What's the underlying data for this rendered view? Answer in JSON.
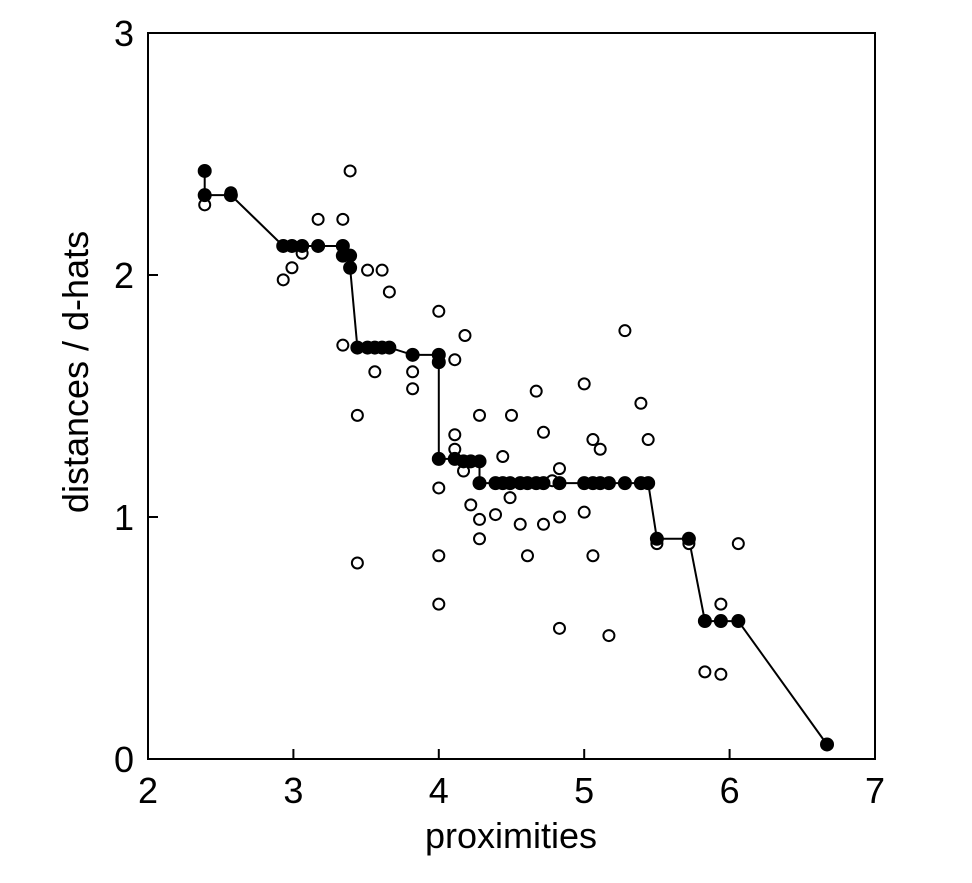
{
  "chart_data": {
    "type": "scatter",
    "title": "",
    "xlabel": "proximities",
    "ylabel": "distances / d-hats",
    "xlim": [
      2,
      7
    ],
    "ylim": [
      0,
      3
    ],
    "x_ticks": [
      2,
      3,
      4,
      5,
      6,
      7
    ],
    "y_ticks": [
      0,
      1,
      2,
      3
    ],
    "grid": false,
    "series": [
      {
        "style": "open-circle",
        "points": [
          [
            2.39,
            2.29
          ],
          [
            2.57,
            2.34
          ],
          [
            2.93,
            1.98
          ],
          [
            2.99,
            2.03
          ],
          [
            3.06,
            2.09
          ],
          [
            3.17,
            2.23
          ],
          [
            3.34,
            2.23
          ],
          [
            3.39,
            2.43
          ],
          [
            3.34,
            1.71
          ],
          [
            3.44,
            1.42
          ],
          [
            3.44,
            0.81
          ],
          [
            3.51,
            2.02
          ],
          [
            3.56,
            1.6
          ],
          [
            3.61,
            2.02
          ],
          [
            3.66,
            1.93
          ],
          [
            3.82,
            1.6
          ],
          [
            3.82,
            1.53
          ],
          [
            4.0,
            1.85
          ],
          [
            4.0,
            1.12
          ],
          [
            4.0,
            0.84
          ],
          [
            4.0,
            0.64
          ],
          [
            4.11,
            1.34
          ],
          [
            4.11,
            1.28
          ],
          [
            4.11,
            1.65
          ],
          [
            4.17,
            1.19
          ],
          [
            4.18,
            1.75
          ],
          [
            4.22,
            1.05
          ],
          [
            4.28,
            1.42
          ],
          [
            4.28,
            0.99
          ],
          [
            4.28,
            0.91
          ],
          [
            4.39,
            1.01
          ],
          [
            4.44,
            1.25
          ],
          [
            4.49,
            1.08
          ],
          [
            4.5,
            1.42
          ],
          [
            4.56,
            0.97
          ],
          [
            4.61,
            0.84
          ],
          [
            4.67,
            1.52
          ],
          [
            4.72,
            1.35
          ],
          [
            4.72,
            0.97
          ],
          [
            4.78,
            1.15
          ],
          [
            4.83,
            1.2
          ],
          [
            4.83,
            1.0
          ],
          [
            4.83,
            0.54
          ],
          [
            5.0,
            1.55
          ],
          [
            5.0,
            1.02
          ],
          [
            5.06,
            1.32
          ],
          [
            5.06,
            0.84
          ],
          [
            5.11,
            1.28
          ],
          [
            5.17,
            0.51
          ],
          [
            5.28,
            1.77
          ],
          [
            5.39,
            1.47
          ],
          [
            5.44,
            1.32
          ],
          [
            5.5,
            0.89
          ],
          [
            5.72,
            0.89
          ],
          [
            5.83,
            0.36
          ],
          [
            5.94,
            0.64
          ],
          [
            5.94,
            0.35
          ],
          [
            6.06,
            0.89
          ]
        ]
      },
      {
        "style": "filled-circle-line",
        "points": [
          [
            2.39,
            2.43
          ],
          [
            2.39,
            2.33
          ],
          [
            2.57,
            2.33
          ],
          [
            2.93,
            2.12
          ],
          [
            2.99,
            2.12
          ],
          [
            3.06,
            2.12
          ],
          [
            3.17,
            2.12
          ],
          [
            3.34,
            2.12
          ],
          [
            3.34,
            2.08
          ],
          [
            3.39,
            2.08
          ],
          [
            3.39,
            2.03
          ],
          [
            3.44,
            1.7
          ],
          [
            3.51,
            1.7
          ],
          [
            3.56,
            1.7
          ],
          [
            3.61,
            1.7
          ],
          [
            3.66,
            1.7
          ],
          [
            3.82,
            1.67
          ],
          [
            4.0,
            1.67
          ],
          [
            4.0,
            1.64
          ],
          [
            4.0,
            1.24
          ],
          [
            4.11,
            1.24
          ],
          [
            4.17,
            1.23
          ],
          [
            4.22,
            1.23
          ],
          [
            4.28,
            1.23
          ],
          [
            4.28,
            1.14
          ],
          [
            4.39,
            1.14
          ],
          [
            4.44,
            1.14
          ],
          [
            4.49,
            1.14
          ],
          [
            4.56,
            1.14
          ],
          [
            4.61,
            1.14
          ],
          [
            4.67,
            1.14
          ],
          [
            4.72,
            1.14
          ],
          [
            4.83,
            1.14
          ],
          [
            5.0,
            1.14
          ],
          [
            5.06,
            1.14
          ],
          [
            5.11,
            1.14
          ],
          [
            5.17,
            1.14
          ],
          [
            5.28,
            1.14
          ],
          [
            5.39,
            1.14
          ],
          [
            5.44,
            1.14
          ],
          [
            5.5,
            0.91
          ],
          [
            5.72,
            0.91
          ],
          [
            5.83,
            0.57
          ],
          [
            5.94,
            0.57
          ],
          [
            6.06,
            0.57
          ],
          [
            6.67,
            0.06
          ]
        ]
      }
    ]
  }
}
